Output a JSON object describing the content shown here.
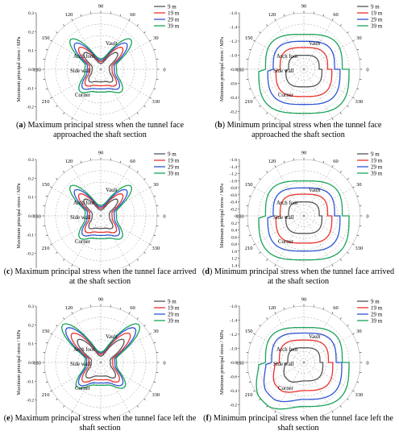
{
  "figure": {
    "panels": [
      {
        "id": "a",
        "letter": "a",
        "caption_rest": " Maximum principal stress when the tunnel face approached the shaft section"
      },
      {
        "id": "b",
        "letter": "b",
        "caption_rest": " Minimum principal stress when the tunnel face approached the shaft section"
      },
      {
        "id": "c",
        "letter": "c",
        "caption_rest": " Maximum principal stress when the tunnel face arrived at the shaft section"
      },
      {
        "id": "d",
        "letter": "d",
        "caption_rest": " Minimum principal stress when the tunnel face arrived at the shaft section"
      },
      {
        "id": "e",
        "letter": "e",
        "caption_rest": " Maximum principal stress when the tunnel face left the shaft section"
      },
      {
        "id": "f",
        "letter": "f",
        "caption_rest": " Minimum principal stress when the tunnel face left the shaft section"
      }
    ]
  },
  "chart_data": [
    {
      "id": "a",
      "type": "line",
      "ylabel": "Maximum principal stress / MPa",
      "radial_ticks": [
        "0.3",
        "0.2",
        "0.1",
        "0.0",
        "-0.1",
        "-0.2",
        "-0.3"
      ],
      "angle_ticks": [
        "0",
        "30",
        "60",
        "90",
        "120",
        "150",
        "180",
        "210",
        "240",
        "270",
        "300",
        "330"
      ],
      "annotations": [
        "Vault",
        "Arch foot",
        "Side wall",
        "Corner"
      ],
      "series": [
        {
          "name": "9 m",
          "color": "#555555",
          "scale": 0.55
        },
        {
          "name": "19 m",
          "color": "#e8332d",
          "scale": 0.72
        },
        {
          "name": "29 m",
          "color": "#2f55d4",
          "scale": 0.86
        },
        {
          "name": "39 m",
          "color": "#1aa35a",
          "scale": 1.0
        }
      ]
    },
    {
      "id": "b",
      "type": "line",
      "ylabel": "Minimum principal stress / MPa",
      "radial_ticks": [
        "-1.6",
        "-1.4",
        "-1.2",
        "-1.0",
        "-0.8",
        "-0.6",
        "-0.4",
        "-0.2",
        "0"
      ],
      "angle_ticks": [
        "0",
        "30",
        "60",
        "90",
        "120",
        "150",
        "180",
        "210",
        "240",
        "270",
        "300",
        "330"
      ],
      "annotations": [
        "Vault",
        "Arch foot",
        "Side wall",
        "Corner"
      ],
      "series": [
        {
          "name": "9 m",
          "color": "#555555",
          "scale": 0.4
        },
        {
          "name": "19 m",
          "color": "#e8332d",
          "scale": 0.62
        },
        {
          "name": "29 m",
          "color": "#2f55d4",
          "scale": 0.8
        },
        {
          "name": "39 m",
          "color": "#1aa35a",
          "scale": 1.0
        }
      ]
    },
    {
      "id": "c",
      "type": "line",
      "ylabel": "Maximum principal stress / MPa",
      "radial_ticks": [
        "0.3",
        "0.2",
        "0.1",
        "0.0",
        "-0.1",
        "-0.2",
        "-0.3"
      ],
      "angle_ticks": [
        "0",
        "30",
        "60",
        "90",
        "120",
        "150",
        "180",
        "210",
        "240",
        "270",
        "300",
        "330"
      ],
      "annotations": [
        "Vault",
        "Arch foot",
        "Side wall",
        "Corner"
      ],
      "series": [
        {
          "name": "9 m",
          "color": "#555555",
          "scale": 0.55
        },
        {
          "name": "19 m",
          "color": "#e8332d",
          "scale": 0.72
        },
        {
          "name": "29 m",
          "color": "#2f55d4",
          "scale": 0.86
        },
        {
          "name": "39 m",
          "color": "#1aa35a",
          "scale": 1.0
        }
      ]
    },
    {
      "id": "d",
      "type": "line",
      "ylabel": "Minimum principal stress / MPa",
      "radial_ticks": [
        "-1.6",
        "-1.4",
        "-1.2",
        "-1.0",
        "-0.8",
        "-0.6",
        "-0.4",
        "-0.2",
        "0",
        "0.2",
        "0.4",
        "0.6",
        "0.8",
        "1.0",
        "1.2",
        "1.4",
        "1.6"
      ],
      "angle_ticks": [
        "0",
        "30",
        "60",
        "90",
        "120",
        "150",
        "180",
        "210",
        "240",
        "270",
        "300",
        "330"
      ],
      "annotations": [
        "Vault",
        "Arch foot",
        "Side wall",
        "Corner"
      ],
      "series": [
        {
          "name": "9 m",
          "color": "#555555",
          "scale": 0.4
        },
        {
          "name": "19 m",
          "color": "#e8332d",
          "scale": 0.62
        },
        {
          "name": "29 m",
          "color": "#2f55d4",
          "scale": 0.8
        },
        {
          "name": "39 m",
          "color": "#1aa35a",
          "scale": 1.0
        }
      ]
    },
    {
      "id": "e",
      "type": "line",
      "ylabel": "Maximum principal stress / MPa",
      "radial_ticks": [
        "0.3",
        "0.2",
        "0.1",
        "0.0",
        "-0.1",
        "-0.2",
        "-0.3"
      ],
      "angle_ticks": [
        "0",
        "30",
        "60",
        "90",
        "120",
        "150",
        "180",
        "210",
        "240",
        "270",
        "300",
        "330"
      ],
      "annotations": [
        "Vault",
        "Arch foot",
        "Side wall",
        "Corner"
      ],
      "series": [
        {
          "name": "9 m",
          "color": "#555555",
          "scale": 0.6
        },
        {
          "name": "19 m",
          "color": "#e8332d",
          "scale": 0.76
        },
        {
          "name": "29 m",
          "color": "#2f55d4",
          "scale": 0.9
        },
        {
          "name": "39 m",
          "color": "#1aa35a",
          "scale": 1.0
        }
      ]
    },
    {
      "id": "f",
      "type": "line",
      "ylabel": "Minimum principal stress / MPa",
      "radial_ticks": [
        "-1.6",
        "-1.4",
        "-1.2",
        "-1.0",
        "-0.8",
        "-0.6",
        "-0.4",
        "-0.2",
        "0"
      ],
      "angle_ticks": [
        "0",
        "30",
        "60",
        "90",
        "120",
        "150",
        "180",
        "210",
        "240",
        "270",
        "300",
        "330"
      ],
      "annotations": [
        "Vault",
        "Arch foot",
        "Side wall",
        "Corner"
      ],
      "series": [
        {
          "name": "9 m",
          "color": "#555555",
          "scale": 0.42
        },
        {
          "name": "19 m",
          "color": "#e8332d",
          "scale": 0.64
        },
        {
          "name": "29 m",
          "color": "#2f55d4",
          "scale": 0.84
        },
        {
          "name": "39 m",
          "color": "#1aa35a",
          "scale": 1.0
        }
      ]
    }
  ]
}
